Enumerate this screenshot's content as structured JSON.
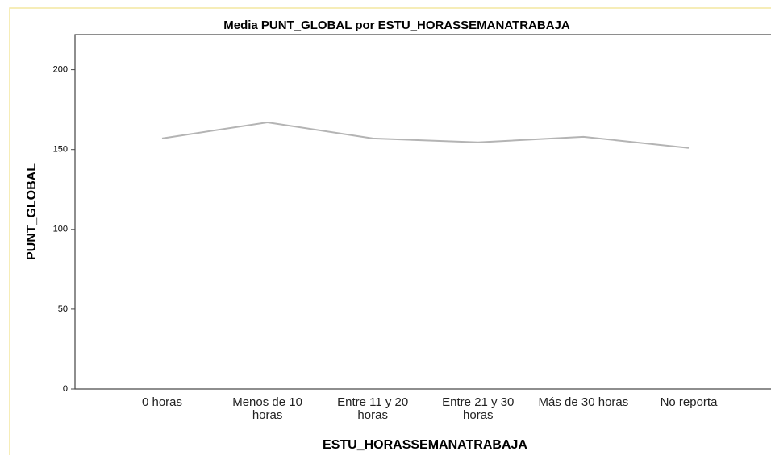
{
  "chart_data": {
    "type": "line",
    "title": "Media PUNT_GLOBAL por ESTU_HORASSEMANATRABAJA",
    "xlabel": "ESTU_HORASSEMANATRABAJA",
    "ylabel": "PUNT_GLOBAL",
    "categories": [
      "0 horas",
      "Menos de 10 horas",
      "Entre 11 y 20 horas",
      "Entre 21 y 30 horas",
      "Más de 30 horas",
      "No reporta"
    ],
    "values": [
      157,
      167,
      157,
      154.5,
      158,
      151
    ],
    "color": "#b4b4b4",
    "ylim": [
      0,
      222
    ],
    "yticks": [
      0,
      50,
      100,
      150,
      200
    ],
    "grid": false
  }
}
